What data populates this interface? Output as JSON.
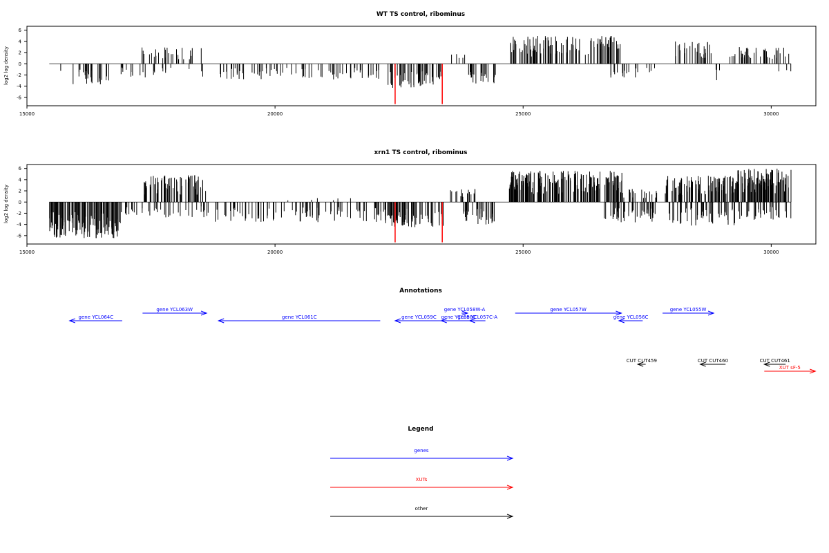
{
  "panels": [
    {
      "title": "WT TS control, ribominus",
      "ylabel": "log2 log density",
      "xlim": [
        15000,
        30900
      ],
      "ylim": [
        -7.5,
        6.7
      ],
      "x_ticks": [
        15000,
        20000,
        25000,
        30000
      ],
      "y_ticks": [
        -6,
        -4,
        -2,
        0,
        2,
        4,
        6
      ],
      "highlight_color": "#ff0000",
      "highlight_lines": [
        {
          "x": 22420,
          "y": -7.2
        },
        {
          "x": 23370,
          "y": -7.2
        }
      ]
    },
    {
      "title": "xrn1 TS control, ribominus",
      "ylabel": "log2 log density",
      "xlim": [
        15000,
        30900
      ],
      "ylim": [
        -7.5,
        6.7
      ],
      "x_ticks": [
        15000,
        20000,
        25000,
        30000
      ],
      "y_ticks": [
        -6,
        -4,
        -2,
        0,
        2,
        4,
        6
      ],
      "highlight_color": "#ff0000",
      "highlight_lines": [
        {
          "x": 22420,
          "y": -7.2
        },
        {
          "x": 23370,
          "y": -7.2
        }
      ]
    }
  ],
  "chart_data": [
    {
      "type": "bar",
      "title": "WT TS control, ribominus",
      "xlabel": "",
      "ylabel": "log2 log density",
      "xlim": [
        15000,
        30900
      ],
      "ylim": [
        -7.5,
        6.7
      ],
      "grid": false,
      "segments": [
        {
          "x0": 15450,
          "x1": 15900,
          "n": 1,
          "sign": -1,
          "amp": 1.8,
          "seed": 11
        },
        {
          "x0": 15900,
          "x1": 16900,
          "n": 26,
          "sign": -1,
          "amp": 3.8,
          "seed": 12
        },
        {
          "x0": 16900,
          "x1": 17250,
          "n": 8,
          "sign": -1,
          "amp": 2.5,
          "seed": 13
        },
        {
          "x0": 17250,
          "x1": 18600,
          "n": 30,
          "sign": 1,
          "amp": 3.0,
          "seed": 14
        },
        {
          "x0": 17250,
          "x1": 18600,
          "n": 14,
          "sign": -1,
          "amp": 2.5,
          "seed": 15
        },
        {
          "x0": 18600,
          "x1": 22200,
          "n": 70,
          "sign": -1,
          "amp": 2.8,
          "seed": 16
        },
        {
          "x0": 22250,
          "x1": 23400,
          "n": 55,
          "sign": -1,
          "amp": 4.4,
          "seed": 17
        },
        {
          "x0": 23500,
          "x1": 23900,
          "n": 5,
          "sign": 1,
          "amp": 2.3,
          "seed": 18
        },
        {
          "x0": 23900,
          "x1": 24450,
          "n": 22,
          "sign": -1,
          "amp": 3.6,
          "seed": 19
        },
        {
          "x0": 24700,
          "x1": 27000,
          "n": 110,
          "sign": 1,
          "amp": 5.0,
          "seed": 20
        },
        {
          "x0": 26700,
          "x1": 27400,
          "n": 14,
          "sign": -1,
          "amp": 2.6,
          "seed": 21
        },
        {
          "x0": 27400,
          "x1": 27800,
          "n": 4,
          "sign": -1,
          "amp": 1.6,
          "seed": 22
        },
        {
          "x0": 28000,
          "x1": 28800,
          "n": 28,
          "sign": 1,
          "amp": 4.0,
          "seed": 23
        },
        {
          "x0": 28800,
          "x1": 29100,
          "n": 3,
          "sign": -1,
          "amp": 3.0,
          "seed": 24
        },
        {
          "x0": 29100,
          "x1": 30400,
          "n": 40,
          "sign": 1,
          "amp": 3.0,
          "seed": 25
        },
        {
          "x0": 29900,
          "x1": 30400,
          "n": 4,
          "sign": -1,
          "amp": 1.6,
          "seed": 26
        }
      ]
    },
    {
      "type": "bar",
      "title": "xrn1 TS control, ribominus",
      "xlabel": "",
      "ylabel": "log2 log density",
      "xlim": [
        15000,
        30900
      ],
      "ylim": [
        -7.5,
        6.7
      ],
      "grid": false,
      "segments": [
        {
          "x0": 15450,
          "x1": 16900,
          "n": 130,
          "sign": -1,
          "amp": 6.5,
          "seed": 31
        },
        {
          "x0": 16900,
          "x1": 17300,
          "n": 10,
          "sign": -1,
          "amp": 2.5,
          "seed": 32
        },
        {
          "x0": 17300,
          "x1": 18600,
          "n": 70,
          "sign": 1,
          "amp": 4.8,
          "seed": 33
        },
        {
          "x0": 17300,
          "x1": 18600,
          "n": 25,
          "sign": -1,
          "amp": 2.8,
          "seed": 34
        },
        {
          "x0": 18600,
          "x1": 22200,
          "n": 90,
          "sign": -1,
          "amp": 3.6,
          "seed": 35
        },
        {
          "x0": 19800,
          "x1": 21600,
          "n": 6,
          "sign": 1,
          "amp": 0.7,
          "seed": 36
        },
        {
          "x0": 22200,
          "x1": 23400,
          "n": 70,
          "sign": -1,
          "amp": 4.5,
          "seed": 37
        },
        {
          "x0": 23500,
          "x1": 24050,
          "n": 18,
          "sign": 1,
          "amp": 2.4,
          "seed": 38
        },
        {
          "x0": 23800,
          "x1": 24450,
          "n": 30,
          "sign": -1,
          "amp": 4.0,
          "seed": 39
        },
        {
          "x0": 24700,
          "x1": 27000,
          "n": 170,
          "sign": 1,
          "amp": 5.6,
          "seed": 40
        },
        {
          "x0": 26600,
          "x1": 27700,
          "n": 45,
          "sign": -1,
          "amp": 3.7,
          "seed": 41
        },
        {
          "x0": 27000,
          "x1": 27800,
          "n": 20,
          "sign": 1,
          "amp": 2.5,
          "seed": 42
        },
        {
          "x0": 27800,
          "x1": 29300,
          "n": 90,
          "sign": 1,
          "amp": 4.7,
          "seed": 43
        },
        {
          "x0": 27900,
          "x1": 29300,
          "n": 50,
          "sign": -1,
          "amp": 4.2,
          "seed": 44
        },
        {
          "x0": 29300,
          "x1": 30400,
          "n": 100,
          "sign": 1,
          "amp": 6.0,
          "seed": 45
        },
        {
          "x0": 29300,
          "x1": 30400,
          "n": 30,
          "sign": -1,
          "amp": 3.2,
          "seed": 46
        }
      ]
    }
  ],
  "annotations": {
    "title": "Annotations",
    "xlim": [
      15000,
      30900
    ],
    "features": [
      {
        "label": "gene YCL064C",
        "kind": "gene",
        "x0": 15860,
        "x1": 16920,
        "dir": "left",
        "row": 2
      },
      {
        "label": "gene YCL063W",
        "kind": "gene",
        "x0": 17330,
        "x1": 18620,
        "dir": "right",
        "row": 1
      },
      {
        "label": "gene YCL061C",
        "kind": "gene",
        "x0": 18860,
        "x1": 22120,
        "dir": "left",
        "row": 2
      },
      {
        "label": "gene YCL059C",
        "kind": "gene",
        "x0": 22420,
        "x1": 23380,
        "dir": "left",
        "row": 2
      },
      {
        "label": "gene YCL058W-A",
        "kind": "gene",
        "x0": 23760,
        "x1": 23880,
        "dir": "right",
        "row": 1
      },
      {
        "label": "gene YCL058C",
        "kind": "gene",
        "x0": 23350,
        "x1": 24050,
        "dir": "left",
        "row": 2
      },
      {
        "label": "gene YCL057C-A",
        "kind": "gene",
        "x0": 23920,
        "x1": 24240,
        "dir": "left",
        "row": 2
      },
      {
        "label": "gene YCL057W",
        "kind": "gene",
        "x0": 24840,
        "x1": 26980,
        "dir": "right",
        "row": 1
      },
      {
        "label": "gene YCL056C",
        "kind": "gene",
        "x0": 26930,
        "x1": 27410,
        "dir": "left",
        "row": 2
      },
      {
        "label": "gene YCL055W",
        "kind": "gene",
        "x0": 27810,
        "x1": 28840,
        "dir": "right",
        "row": 1
      },
      {
        "label": "CUT CUT459",
        "kind": "other",
        "x0": 27310,
        "x1": 27470,
        "dir": "left",
        "row": 4
      },
      {
        "label": "CUT CUT460",
        "kind": "other",
        "x0": 28570,
        "x1": 29080,
        "dir": "left",
        "row": 4
      },
      {
        "label": "CUT CUT461",
        "kind": "other",
        "x0": 29860,
        "x1": 30290,
        "dir": "left",
        "row": 4
      },
      {
        "label": "XUT sF-5",
        "kind": "xut",
        "x0": 29860,
        "x1": 30890,
        "dir": "right",
        "row": 5
      }
    ]
  },
  "legend": {
    "title": "Legend",
    "items": [
      {
        "label": "genes",
        "kind": "gene"
      },
      {
        "label": "XUTs",
        "kind": "xut"
      },
      {
        "label": "other",
        "kind": "other"
      }
    ]
  },
  "colors": {
    "gene": "#0000ff",
    "xut": "#ff0000",
    "other": "#000000",
    "bars": "#000000",
    "baseline": "#000000"
  }
}
